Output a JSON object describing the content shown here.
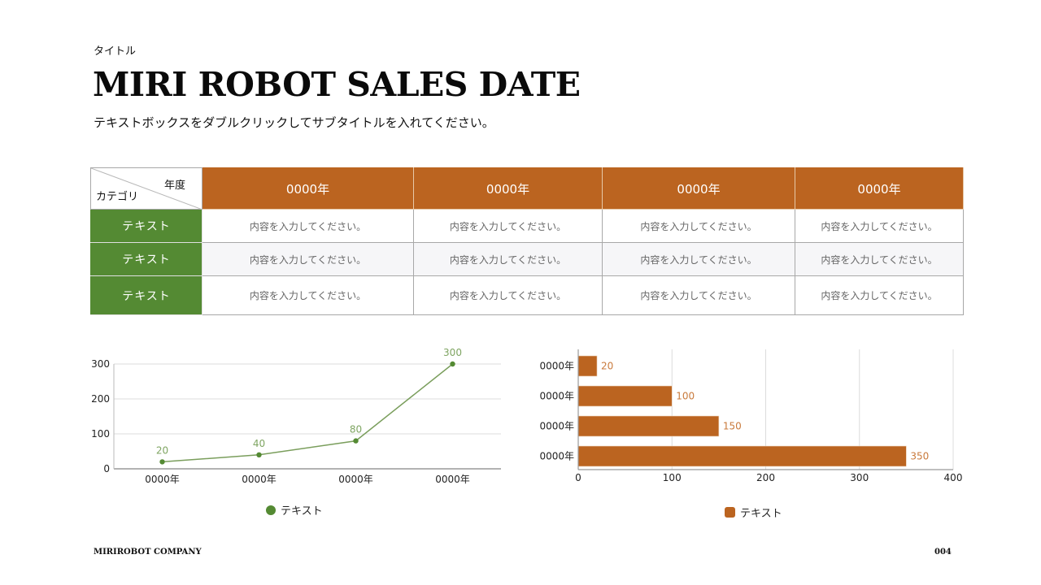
{
  "header": {
    "kicker": "タイトル",
    "title": "MIRI ROBOT SALES DATE",
    "subtitle": "テキストボックスをダブルクリックしてサブタイトルを入れてください。"
  },
  "table": {
    "corner_top": "年度",
    "corner_bottom": "カテゴリ",
    "columns": [
      "0000年",
      "0000年",
      "0000年",
      "0000年"
    ],
    "rows": [
      {
        "label": "テキスト",
        "cells": [
          "内容を入力してください。",
          "内容を入力してください。",
          "内容を入力してください。",
          "内容を入力してください。"
        ]
      },
      {
        "label": "テキスト",
        "cells": [
          "内容を入力してください。",
          "内容を入力してください。",
          "内容を入力してください。",
          "内容を入力してください。"
        ]
      },
      {
        "label": "テキスト",
        "cells": [
          "内容を入力してください。",
          "内容を入力してください。",
          "内容を入力してください。",
          "内容を入力してください。"
        ]
      }
    ],
    "colors": {
      "header_bg": "#bb6420",
      "row_head_bg": "#548a33"
    }
  },
  "chart_data": [
    {
      "type": "line",
      "title": "",
      "xlabel": "",
      "ylabel": "",
      "categories": [
        "0000年",
        "0000年",
        "0000年",
        "0000年"
      ],
      "series": [
        {
          "name": "テキスト",
          "values": [
            20,
            40,
            80,
            300
          ],
          "color": "#548a33"
        }
      ],
      "ylim": [
        0,
        300
      ],
      "yticks": [
        0,
        100,
        200,
        300
      ],
      "grid": true,
      "data_labels": true,
      "legend_position": "bottom"
    },
    {
      "type": "bar",
      "orientation": "horizontal",
      "title": "",
      "xlabel": "",
      "ylabel": "",
      "categories": [
        "0000年",
        "0000年",
        "0000年",
        "0000年"
      ],
      "series": [
        {
          "name": "テキスト",
          "values": [
            20,
            100,
            150,
            350
          ],
          "color": "#bb6420"
        }
      ],
      "xlim": [
        0,
        400
      ],
      "xticks": [
        0,
        100,
        200,
        300,
        400
      ],
      "grid": true,
      "data_labels": true,
      "legend_position": "bottom"
    }
  ],
  "footer": {
    "company": "MIRIROBOT COMPANY",
    "page": "004"
  }
}
